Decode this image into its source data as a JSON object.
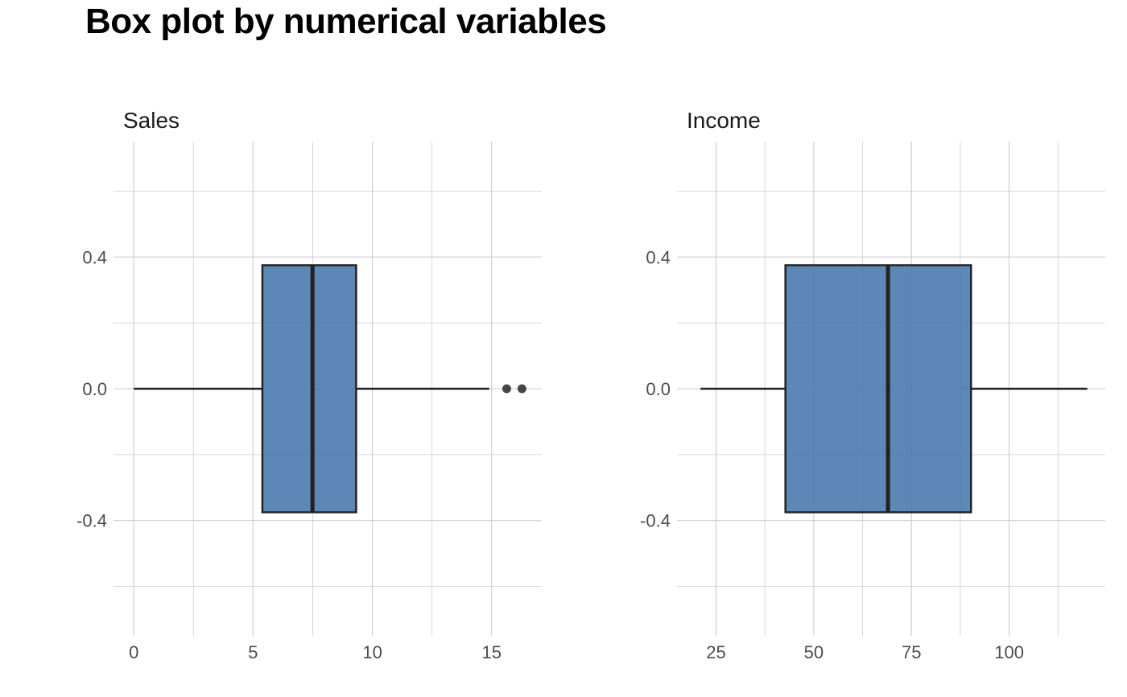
{
  "title": "Box plot by numerical variables",
  "colors": {
    "box_fill": "#4a7aaf",
    "outline": "#222222",
    "grid": "#cccccc",
    "tick_text": "#4d4d4d",
    "outlier": "#333333"
  },
  "chart_data": [
    {
      "type": "boxplot",
      "title": "Sales",
      "xlabel": "",
      "ylabel": "",
      "grid": true,
      "xlim": [
        -0.85,
        17.1
      ],
      "ylim": [
        -0.75,
        0.75
      ],
      "x_ticks": [
        0,
        5,
        10,
        15
      ],
      "y_ticks": [
        0.4,
        0.0,
        -0.4
      ],
      "y_tick_labels": [
        "0.4",
        "0.0",
        "-0.4"
      ],
      "stats": {
        "whisker_low": 0,
        "q1": 5.39,
        "median": 7.49,
        "q3": 9.32,
        "whisker_high": 14.9
      },
      "outliers": [
        15.63,
        16.27
      ],
      "box_halfwidth": 0.375
    },
    {
      "type": "boxplot",
      "title": "Income",
      "xlabel": "",
      "ylabel": "",
      "grid": true,
      "xlim": [
        15.0,
        124.6
      ],
      "ylim": [
        -0.75,
        0.75
      ],
      "x_ticks": [
        25,
        50,
        75,
        100
      ],
      "y_ticks": [
        0.4,
        0.0,
        -0.4
      ],
      "y_tick_labels": [
        "0.4",
        "0.0",
        "-0.4"
      ],
      "stats": {
        "whisker_low": 21,
        "q1": 42.75,
        "median": 69,
        "q3": 90.25,
        "whisker_high": 120
      },
      "outliers": [],
      "box_halfwidth": 0.375
    }
  ]
}
